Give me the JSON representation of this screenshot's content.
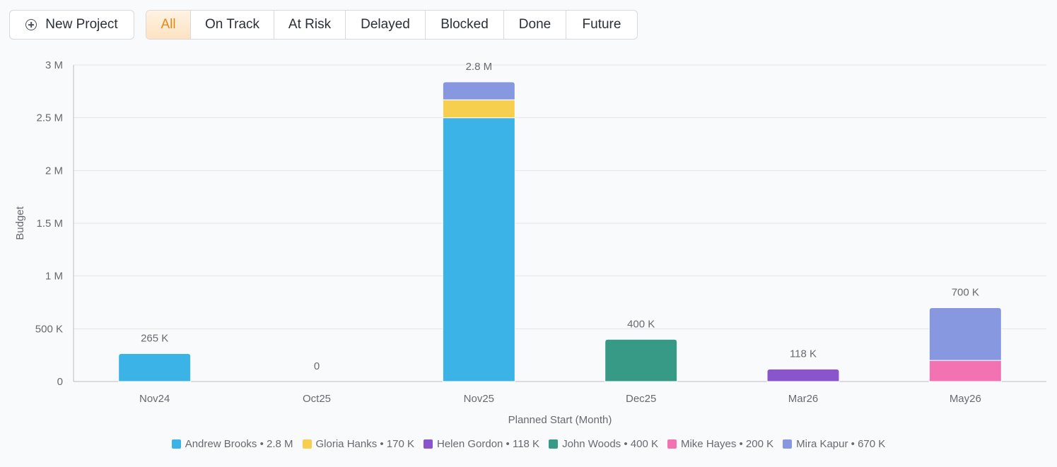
{
  "toolbar": {
    "new_project_label": "New Project",
    "filters": [
      {
        "label": "All",
        "active": true
      },
      {
        "label": "On Track",
        "active": false
      },
      {
        "label": "At Risk",
        "active": false
      },
      {
        "label": "Delayed",
        "active": false
      },
      {
        "label": "Blocked",
        "active": false
      },
      {
        "label": "Done",
        "active": false
      },
      {
        "label": "Future",
        "active": false
      }
    ]
  },
  "chart_data": {
    "type": "bar",
    "stacked": true,
    "title": "",
    "xlabel": "Planned Start (Month)",
    "ylabel": "Budget",
    "ylim": [
      0,
      3000000
    ],
    "yticks": [
      0,
      500000,
      1000000,
      1500000,
      2000000,
      2500000,
      3000000
    ],
    "ytick_labels": [
      "0",
      "500 K",
      "1 M",
      "1.5 M",
      "2 M",
      "2.5 M",
      "3 M"
    ],
    "grid": true,
    "legend_position": "bottom",
    "categories": [
      "Nov24",
      "Oct25",
      "Nov25",
      "Dec25",
      "Mar26",
      "May26"
    ],
    "totals": [
      "265 K",
      "0",
      "2.8 M",
      "400 K",
      "118 K",
      "700 K"
    ],
    "series": [
      {
        "name": "Andrew Brooks",
        "total_label": "2.8 M",
        "color": "#3cb3e6",
        "values": [
          265000,
          0,
          2500000,
          0,
          0,
          0
        ]
      },
      {
        "name": "Gloria Hanks",
        "total_label": "170 K",
        "color": "#f7cf4e",
        "values": [
          0,
          0,
          170000,
          0,
          0,
          0
        ]
      },
      {
        "name": "Helen Gordon",
        "total_label": "118 K",
        "color": "#8a55cc",
        "values": [
          0,
          0,
          0,
          0,
          118000,
          0
        ]
      },
      {
        "name": "John Woods",
        "total_label": "400 K",
        "color": "#369a86",
        "values": [
          0,
          0,
          0,
          400000,
          0,
          0
        ]
      },
      {
        "name": "Mike Hayes",
        "total_label": "200 K",
        "color": "#f272b2",
        "values": [
          0,
          0,
          0,
          0,
          0,
          200000
        ]
      },
      {
        "name": "Mira Kapur",
        "total_label": "670 K",
        "color": "#8798e0",
        "values": [
          0,
          0,
          170000,
          0,
          0,
          500000
        ]
      }
    ]
  }
}
